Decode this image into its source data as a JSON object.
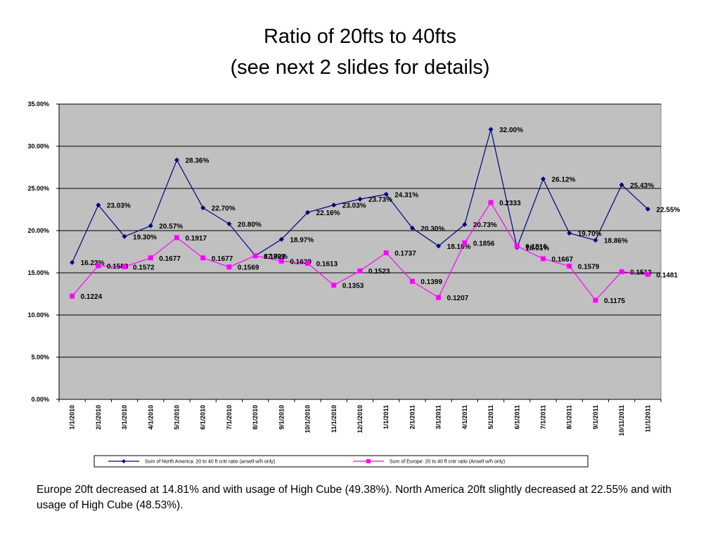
{
  "slide": {
    "title_line1": "Ratio of 20fts to 40fts",
    "title_line2": "(see next 2 slides for details)",
    "caption": "Europe 20ft decreased at 14.81% and with usage of High Cube (49.38%). North America 20ft slightly decreased at 22.55% and with usage of High Cube (48.53%)."
  },
  "chart_data": {
    "type": "line",
    "title": "",
    "xlabel": "",
    "ylabel": "",
    "ylim": [
      0,
      0.35
    ],
    "yticks": [
      0,
      0.05,
      0.1,
      0.15,
      0.2,
      0.25,
      0.3,
      0.35
    ],
    "ytick_labels": [
      "0.00%",
      "5.00%",
      "10.00%",
      "15.00%",
      "20.00%",
      "25.00%",
      "30.00%",
      "35.00%"
    ],
    "grid": true,
    "legend_position": "bottom",
    "plot_background": "#c0c0c0",
    "categories": [
      "1/1/2010",
      "2/1/2010",
      "3/1/2010",
      "4/1/2010",
      "5/1/2010",
      "6/1/2010",
      "7/1/2010",
      "8/1/2010",
      "9/1/2010",
      "10/1/2010",
      "11/1/2010",
      "12/1/2010",
      "1/1/2011",
      "2/1/2011",
      "3/1/2011",
      "4/1/2011",
      "5/1/2011",
      "6/1/2011",
      "7/1/2011",
      "8/1/2011",
      "9/1/2011",
      "10/11/2011",
      "11/1/2011"
    ],
    "series": [
      {
        "name": "Sum of North America:  20  to 40  ft cntr ratio  (ansell  w/h only)",
        "color": "#000080",
        "marker": "diamond",
        "values": [
          0.1623,
          0.2303,
          0.193,
          0.2057,
          0.2836,
          0.227,
          0.208,
          0.1702,
          0.1897,
          0.2216,
          0.2303,
          0.2373,
          0.2431,
          0.203,
          0.1818,
          0.2073,
          0.32,
          0.1801,
          0.2612,
          0.197,
          0.1886,
          0.2543,
          0.2255
        ],
        "labels": [
          "16.23%",
          "23.03%",
          "19.30%",
          "20.57%",
          "28.36%",
          "22.70%",
          "20.80%",
          "17.02%",
          "18.97%",
          "22.16%",
          "23.03%",
          "23.73%",
          "24.31%",
          "20.30%",
          "18.18%",
          "20.73%",
          "32.00%",
          "18.01%",
          "26.12%",
          "19.70%",
          "18.86%",
          "25.43%",
          "22.55%"
        ]
      },
      {
        "name": "Sum of Europe:  20  to 40  ft cntr ratio  (Ansell  w/h only)",
        "color": "#ff00ff",
        "marker": "square",
        "values": [
          0.1224,
          0.1583,
          0.1572,
          0.1677,
          0.1917,
          0.1677,
          0.1569,
          0.1702,
          0.1639,
          0.1613,
          0.1353,
          0.1523,
          0.1737,
          0.1399,
          0.1207,
          0.1856,
          0.2333,
          0.1816,
          0.1667,
          0.1579,
          0.1175,
          0.1513,
          0.1481
        ],
        "labels": [
          "0.1224",
          "0.1583",
          "0.1572",
          "0.1677",
          "0.1917",
          "0.1677",
          "0.1569",
          "0.1702",
          "0.1639",
          "0.1613",
          "0.1353",
          "0.1523",
          "0.1737",
          "0.1399",
          "0.1207",
          "0.1856",
          "0.2333",
          "0.1816",
          "0.1667",
          "0.1579",
          "0.1175",
          "0.1513",
          "0.1481"
        ]
      }
    ]
  }
}
